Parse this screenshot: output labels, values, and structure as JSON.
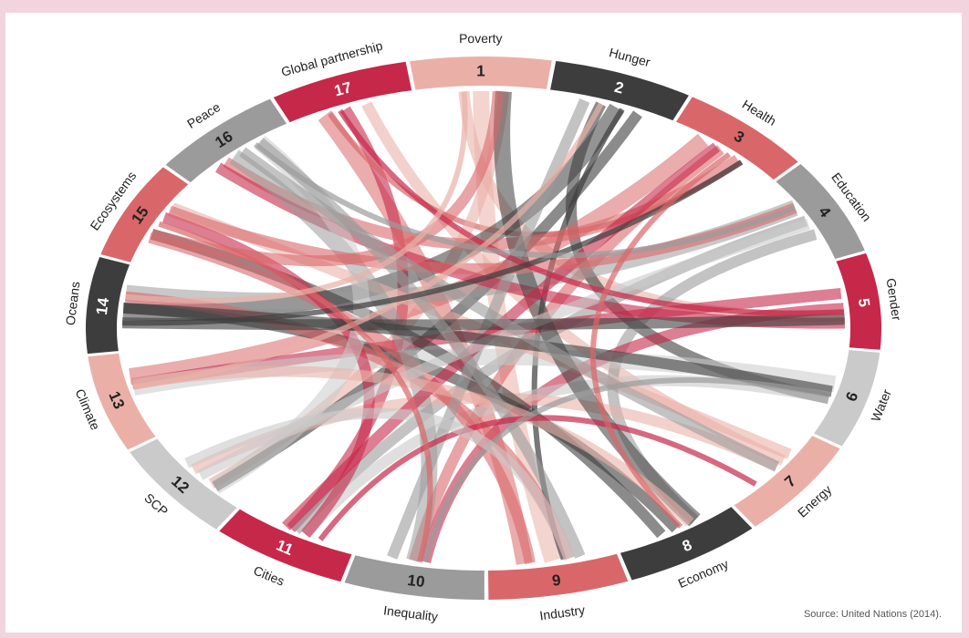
{
  "diagram": {
    "type": "chord",
    "segments": [
      {
        "number": "1",
        "label": "Poverty",
        "color": "#eab0a8",
        "num_color": "#222222"
      },
      {
        "number": "2",
        "label": "Hunger",
        "color": "#3d3d3d",
        "num_color": "#ffffff"
      },
      {
        "number": "3",
        "label": "Health",
        "color": "#d9676a",
        "num_color": "#222222"
      },
      {
        "number": "4",
        "label": "Education",
        "color": "#9b9b9b",
        "num_color": "#222222"
      },
      {
        "number": "5",
        "label": "Gender",
        "color": "#c6284a",
        "num_color": "#ffffff"
      },
      {
        "number": "6",
        "label": "Water",
        "color": "#cacaca",
        "num_color": "#222222"
      },
      {
        "number": "7",
        "label": "Energy",
        "color": "#eab0a8",
        "num_color": "#222222"
      },
      {
        "number": "8",
        "label": "Economy",
        "color": "#3d3d3d",
        "num_color": "#ffffff"
      },
      {
        "number": "9",
        "label": "Industry",
        "color": "#d9676a",
        "num_color": "#222222"
      },
      {
        "number": "10",
        "label": "Inequality",
        "color": "#9b9b9b",
        "num_color": "#222222"
      },
      {
        "number": "11",
        "label": "Cities",
        "color": "#c6284a",
        "num_color": "#ffffff"
      },
      {
        "number": "12",
        "label": "SCP",
        "color": "#cacaca",
        "num_color": "#222222"
      },
      {
        "number": "13",
        "label": "Climate",
        "color": "#eab0a8",
        "num_color": "#222222"
      },
      {
        "number": "14",
        "label": "Oceans",
        "color": "#3d3d3d",
        "num_color": "#ffffff"
      },
      {
        "number": "15",
        "label": "Ecosystems",
        "color": "#d9676a",
        "num_color": "#222222"
      },
      {
        "number": "16",
        "label": "Peace",
        "color": "#9b9b9b",
        "num_color": "#222222"
      },
      {
        "number": "17",
        "label": "Global partnership",
        "color": "#c6284a",
        "num_color": "#ffffff"
      }
    ],
    "links": [
      {
        "from": 17,
        "to": 9,
        "color": "#d9676a",
        "weight": 3
      },
      {
        "from": 17,
        "to": 11,
        "color": "#c6284a",
        "weight": 2
      },
      {
        "from": 17,
        "to": 7,
        "color": "#eab0a8",
        "weight": 2
      },
      {
        "from": 17,
        "to": 3,
        "color": "#d9676a",
        "weight": 1
      },
      {
        "from": 1,
        "to": 9,
        "color": "#eab0a8",
        "weight": 3
      },
      {
        "from": 1,
        "to": 12,
        "color": "#eab0a8",
        "weight": 2
      },
      {
        "from": 1,
        "to": 5,
        "color": "#eab0a8",
        "weight": 2
      },
      {
        "from": 2,
        "to": 14,
        "color": "#3d3d3d",
        "weight": 3
      },
      {
        "from": 2,
        "to": 12,
        "color": "#3d3d3d",
        "weight": 2
      },
      {
        "from": 2,
        "to": 6,
        "color": "#3d3d3d",
        "weight": 2
      },
      {
        "from": 2,
        "to": 9,
        "color": "#3d3d3d",
        "weight": 1
      },
      {
        "from": 3,
        "to": 13,
        "color": "#d9676a",
        "weight": 3
      },
      {
        "from": 3,
        "to": 10,
        "color": "#d9676a",
        "weight": 2
      },
      {
        "from": 3,
        "to": 16,
        "color": "#d9676a",
        "weight": 2
      },
      {
        "from": 4,
        "to": 14,
        "color": "#9b9b9b",
        "weight": 3
      },
      {
        "from": 4,
        "to": 11,
        "color": "#9b9b9b",
        "weight": 2
      },
      {
        "from": 4,
        "to": 8,
        "color": "#9b9b9b",
        "weight": 2
      },
      {
        "from": 5,
        "to": 13,
        "color": "#c6284a",
        "weight": 2
      },
      {
        "from": 5,
        "to": 10,
        "color": "#c6284a",
        "weight": 2
      },
      {
        "from": 5,
        "to": 16,
        "color": "#c6284a",
        "weight": 2
      },
      {
        "from": 6,
        "to": 13,
        "color": "#cacaca",
        "weight": 3
      },
      {
        "from": 6,
        "to": 11,
        "color": "#cacaca",
        "weight": 2
      },
      {
        "from": 7,
        "to": 15,
        "color": "#eab0a8",
        "weight": 2
      },
      {
        "from": 7,
        "to": 12,
        "color": "#eab0a8",
        "weight": 2
      },
      {
        "from": 8,
        "to": 15,
        "color": "#3d3d3d",
        "weight": 2
      },
      {
        "from": 8,
        "to": 1,
        "color": "#3d3d3d",
        "weight": 3
      },
      {
        "from": 8,
        "to": 14,
        "color": "#3d3d3d",
        "weight": 2
      },
      {
        "from": 9,
        "to": 15,
        "color": "#d9676a",
        "weight": 2
      },
      {
        "from": 9,
        "to": 14,
        "color": "#d9676a",
        "weight": 2
      },
      {
        "from": 10,
        "to": 16,
        "color": "#9b9b9b",
        "weight": 3
      },
      {
        "from": 10,
        "to": 2,
        "color": "#9b9b9b",
        "weight": 2
      },
      {
        "from": 11,
        "to": 15,
        "color": "#c6284a",
        "weight": 2
      },
      {
        "from": 11,
        "to": 3,
        "color": "#c6284a",
        "weight": 2
      },
      {
        "from": 12,
        "to": 16,
        "color": "#cacaca",
        "weight": 3
      },
      {
        "from": 12,
        "to": 4,
        "color": "#cacaca",
        "weight": 2
      },
      {
        "from": 13,
        "to": 8,
        "color": "#eab0a8",
        "weight": 2
      },
      {
        "from": 14,
        "to": 5,
        "color": "#3d3d3d",
        "weight": 2
      },
      {
        "from": 14,
        "to": 6,
        "color": "#3d3d3d",
        "weight": 2
      },
      {
        "from": 15,
        "to": 4,
        "color": "#d9676a",
        "weight": 2
      },
      {
        "from": 15,
        "to": 1,
        "color": "#d9676a",
        "weight": 2
      },
      {
        "from": 16,
        "to": 7,
        "color": "#9b9b9b",
        "weight": 2
      },
      {
        "from": 16,
        "to": 9,
        "color": "#9b9b9b",
        "weight": 2
      },
      {
        "from": 17,
        "to": 5,
        "color": "#c6284a",
        "weight": 1
      },
      {
        "from": 13,
        "to": 2,
        "color": "#eab0a8",
        "weight": 1
      },
      {
        "from": 11,
        "to": 7,
        "color": "#c6284a",
        "weight": 1
      },
      {
        "from": 10,
        "to": 6,
        "color": "#9b9b9b",
        "weight": 1
      },
      {
        "from": 12,
        "to": 9,
        "color": "#cacaca",
        "weight": 2
      },
      {
        "from": 14,
        "to": 3,
        "color": "#3d3d3d",
        "weight": 1
      },
      {
        "from": 15,
        "to": 10,
        "color": "#d9676a",
        "weight": 1
      },
      {
        "from": 16,
        "to": 4,
        "color": "#9b9b9b",
        "weight": 1
      },
      {
        "from": 1,
        "to": 14,
        "color": "#eab0a8",
        "weight": 1
      },
      {
        "from": 3,
        "to": 8,
        "color": "#d9676a",
        "weight": 1
      }
    ]
  },
  "source": "Source: United Nations (2014)."
}
